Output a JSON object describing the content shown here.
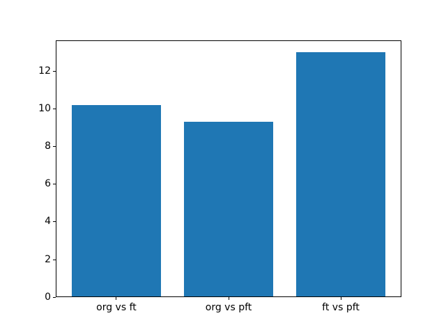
{
  "chart_data": {
    "type": "bar",
    "title": "",
    "categories": [
      "org vs ft",
      "org vs pft",
      "ft vs pft"
    ],
    "values": [
      10.2,
      9.3,
      13.0
    ],
    "yticks": [
      0,
      2,
      4,
      6,
      8,
      10,
      12
    ],
    "ylim": [
      0,
      13.65
    ],
    "xlabel": "",
    "ylabel": "",
    "bar_color": "#1f77b4",
    "axis_color": "#000000",
    "text_color": "#000000",
    "background": "#ffffff",
    "grid": false,
    "legend": "none"
  }
}
